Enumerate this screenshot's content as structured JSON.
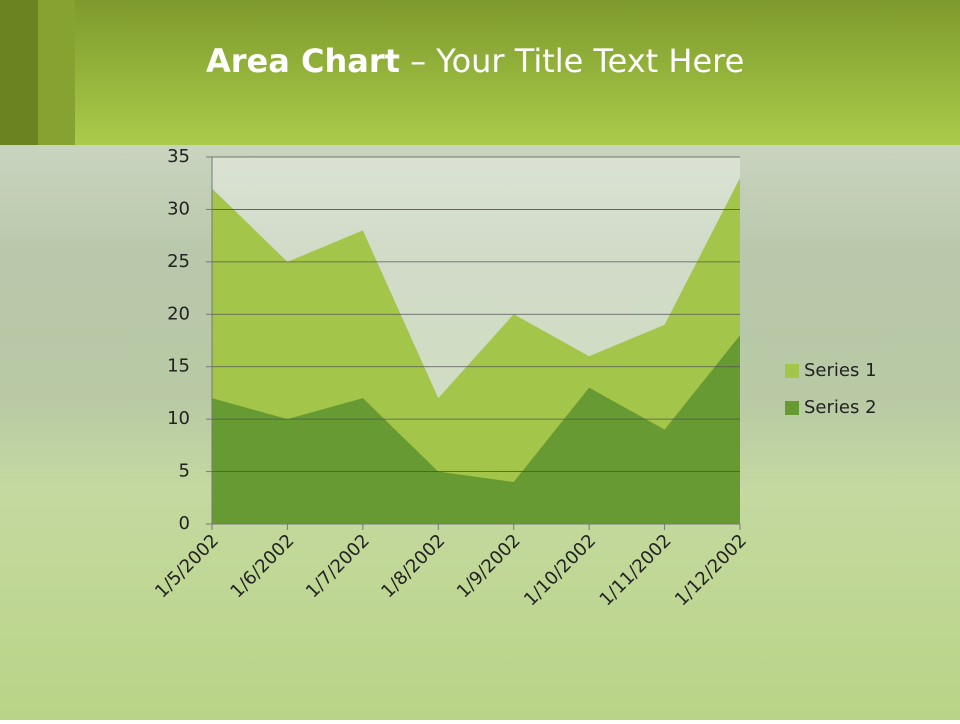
{
  "slide": {
    "title_bold": "Area Chart",
    "title_rest": "– Your Title Text Here"
  },
  "chart_data": {
    "type": "area",
    "categories": [
      "1/5/2002",
      "1/6/2002",
      "1/7/2002",
      "1/8/2002",
      "1/9/2002",
      "1/10/2002",
      "1/11/2002",
      "1/12/2002"
    ],
    "series": [
      {
        "name": "Series 1",
        "color": "#a3c64a",
        "values": [
          32,
          25,
          28,
          12,
          20,
          16,
          19,
          33
        ]
      },
      {
        "name": "Series 2",
        "color": "#679a33",
        "values": [
          12,
          10,
          12,
          5,
          4,
          13,
          9,
          18
        ]
      }
    ],
    "ylim": [
      0,
      35
    ],
    "yticks": [
      0,
      5,
      10,
      15,
      20,
      25,
      30,
      35
    ],
    "grid": true,
    "legend": "right"
  }
}
